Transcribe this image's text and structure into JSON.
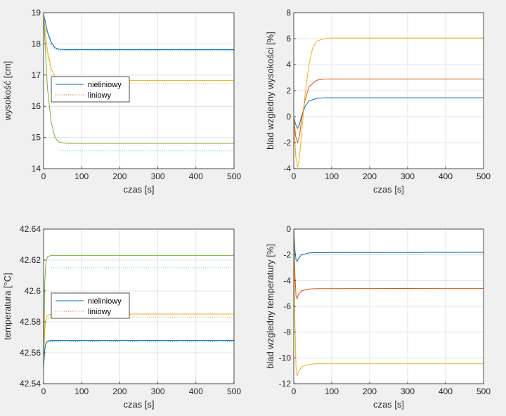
{
  "chart_data": [
    {
      "type": "line",
      "xlabel": "czas [s]",
      "ylabel": "wysokość [cm]",
      "xlim": [
        0,
        500
      ],
      "ylim": [
        14,
        19
      ],
      "xticks": [
        0,
        100,
        200,
        300,
        400,
        500
      ],
      "yticks": [
        14,
        15,
        16,
        17,
        18,
        19
      ],
      "grid": true,
      "legend": {
        "placement": "middle-left",
        "entries": [
          {
            "label": "nieliniowy",
            "style": "solid",
            "color": "#0072bd"
          },
          {
            "label": "liniowy",
            "style": "dotted",
            "color": "#d95319"
          }
        ]
      },
      "series": [
        {
          "style": "solid",
          "color": "#0072bd",
          "points": [
            [
              0,
              18.95
            ],
            [
              10,
              18.4
            ],
            [
              20,
              18.05
            ],
            [
              30,
              17.88
            ],
            [
              40,
              17.83
            ],
            [
              60,
              17.82
            ],
            [
              500,
              17.82
            ]
          ]
        },
        {
          "style": "dotted",
          "color": "#0072bd",
          "points": [
            [
              0,
              18.95
            ],
            [
              10,
              18.35
            ],
            [
              20,
              18.0
            ],
            [
              30,
              17.85
            ],
            [
              40,
              17.8
            ],
            [
              60,
              17.79
            ],
            [
              500,
              17.79
            ]
          ]
        },
        {
          "style": "solid",
          "color": "#edb120",
          "points": [
            [
              0,
              18.95
            ],
            [
              10,
              17.8
            ],
            [
              20,
              17.2
            ],
            [
              30,
              16.95
            ],
            [
              40,
              16.85
            ],
            [
              60,
              16.83
            ],
            [
              500,
              16.83
            ]
          ]
        },
        {
          "style": "dotted",
          "color": "#edb120",
          "points": [
            [
              0,
              18.95
            ],
            [
              10,
              17.7
            ],
            [
              20,
              17.05
            ],
            [
              30,
              16.8
            ],
            [
              40,
              16.73
            ],
            [
              60,
              16.72
            ],
            [
              500,
              16.72
            ]
          ]
        },
        {
          "style": "solid",
          "color": "#77ac30",
          "points": [
            [
              0,
              18.95
            ],
            [
              10,
              16.6
            ],
            [
              20,
              15.5
            ],
            [
              30,
              15.0
            ],
            [
              40,
              14.85
            ],
            [
              60,
              14.81
            ],
            [
              500,
              14.81
            ]
          ]
        },
        {
          "style": "dotted",
          "color": "#4dbeee",
          "points": [
            [
              40,
              14.6
            ],
            [
              60,
              14.57
            ],
            [
              500,
              14.57
            ]
          ]
        }
      ]
    },
    {
      "type": "line",
      "xlabel": "czas [s]",
      "ylabel": "blad wzgledny wysokości [%]",
      "xlim": [
        0,
        500
      ],
      "ylim": [
        -4,
        8
      ],
      "xticks": [
        0,
        100,
        200,
        300,
        400,
        500
      ],
      "yticks": [
        -4,
        -2,
        0,
        2,
        4,
        6,
        8
      ],
      "grid": true,
      "series": [
        {
          "color": "#0072bd",
          "points": [
            [
              0,
              0
            ],
            [
              5,
              -0.6
            ],
            [
              10,
              -0.9
            ],
            [
              15,
              -0.6
            ],
            [
              20,
              0
            ],
            [
              30,
              0.8
            ],
            [
              40,
              1.2
            ],
            [
              60,
              1.4
            ],
            [
              80,
              1.45
            ],
            [
              500,
              1.45
            ]
          ]
        },
        {
          "color": "#d95319",
          "points": [
            [
              0,
              0
            ],
            [
              5,
              -1.5
            ],
            [
              10,
              -2.0
            ],
            [
              15,
              -1.5
            ],
            [
              20,
              -0.3
            ],
            [
              30,
              1.3
            ],
            [
              40,
              2.3
            ],
            [
              60,
              2.8
            ],
            [
              80,
              2.9
            ],
            [
              500,
              2.9
            ]
          ]
        },
        {
          "color": "#edb120",
          "points": [
            [
              0,
              0
            ],
            [
              5,
              -3.0
            ],
            [
              10,
              -3.9
            ],
            [
              15,
              -3.2
            ],
            [
              20,
              -1.5
            ],
            [
              30,
              1.8
            ],
            [
              40,
              4.0
            ],
            [
              50,
              5.3
            ],
            [
              60,
              5.8
            ],
            [
              80,
              6.0
            ],
            [
              100,
              6.05
            ],
            [
              500,
              6.05
            ]
          ]
        }
      ]
    },
    {
      "type": "line",
      "xlabel": "czas [s]",
      "ylabel": "temperatura [°C]",
      "xlim": [
        0,
        500
      ],
      "ylim": [
        42.54,
        42.64
      ],
      "xticks": [
        0,
        100,
        200,
        300,
        400,
        500
      ],
      "yticks": [
        42.54,
        42.56,
        42.58,
        42.6,
        42.62,
        42.64
      ],
      "grid": true,
      "legend": {
        "placement": "middle-left",
        "entries": [
          {
            "label": "nieliniowy",
            "style": "solid",
            "color": "#0072bd"
          },
          {
            "label": "liniowy",
            "style": "dotted",
            "color": "#d95319"
          }
        ]
      },
      "series": [
        {
          "style": "solid",
          "color": "#0072bd",
          "points": [
            [
              0,
              42.55
            ],
            [
              3,
              42.562
            ],
            [
              6,
              42.566
            ],
            [
              10,
              42.5675
            ],
            [
              20,
              42.568
            ],
            [
              500,
              42.568
            ]
          ]
        },
        {
          "style": "dotted",
          "color": "#0072bd",
          "points": [
            [
              0,
              42.55
            ],
            [
              3,
              42.561
            ],
            [
              6,
              42.5655
            ],
            [
              10,
              42.567
            ],
            [
              20,
              42.5675
            ],
            [
              500,
              42.5675
            ]
          ]
        },
        {
          "style": "solid",
          "color": "#edb120",
          "points": [
            [
              0,
              42.55
            ],
            [
              3,
              42.575
            ],
            [
              6,
              42.582
            ],
            [
              10,
              42.584
            ],
            [
              20,
              42.585
            ],
            [
              500,
              42.585
            ]
          ]
        },
        {
          "style": "dotted",
          "color": "#edb120",
          "points": [
            [
              0,
              42.55
            ],
            [
              3,
              42.573
            ],
            [
              6,
              42.58
            ],
            [
              10,
              42.582
            ],
            [
              20,
              42.583
            ],
            [
              500,
              42.583
            ]
          ]
        },
        {
          "style": "solid",
          "color": "#77ac30",
          "points": [
            [
              0,
              42.55
            ],
            [
              3,
              42.605
            ],
            [
              6,
              42.618
            ],
            [
              10,
              42.622
            ],
            [
              20,
              42.623
            ],
            [
              500,
              42.623
            ]
          ]
        },
        {
          "style": "dotted",
          "color": "#4dbeee",
          "points": [
            [
              20,
              42.615
            ],
            [
              500,
              42.615
            ]
          ]
        }
      ]
    },
    {
      "type": "line",
      "xlabel": "czas [s]",
      "ylabel": "blad wzgledny temperatury [%]",
      "xlim": [
        0,
        500
      ],
      "ylim": [
        -12,
        0
      ],
      "xticks": [
        0,
        100,
        200,
        300,
        400,
        500
      ],
      "yticks": [
        -12,
        -10,
        -8,
        -6,
        -4,
        -2,
        0
      ],
      "grid": true,
      "series": [
        {
          "color": "#0072bd",
          "points": [
            [
              0,
              0
            ],
            [
              3,
              -1.6
            ],
            [
              6,
              -2.4
            ],
            [
              9,
              -2.5
            ],
            [
              12,
              -2.3
            ],
            [
              20,
              -2.0
            ],
            [
              40,
              -1.85
            ],
            [
              60,
              -1.82
            ],
            [
              500,
              -1.8
            ]
          ]
        },
        {
          "color": "#d95319",
          "points": [
            [
              0,
              0
            ],
            [
              3,
              -3.5
            ],
            [
              6,
              -5.2
            ],
            [
              9,
              -5.4
            ],
            [
              12,
              -5.1
            ],
            [
              20,
              -4.8
            ],
            [
              40,
              -4.65
            ],
            [
              60,
              -4.62
            ],
            [
              500,
              -4.6
            ]
          ]
        },
        {
          "color": "#edb120",
          "points": [
            [
              0,
              0
            ],
            [
              3,
              -7.0
            ],
            [
              6,
              -10.8
            ],
            [
              9,
              -11.4
            ],
            [
              12,
              -11.1
            ],
            [
              20,
              -10.7
            ],
            [
              40,
              -10.5
            ],
            [
              60,
              -10.45
            ],
            [
              500,
              -10.45
            ]
          ]
        }
      ]
    }
  ]
}
